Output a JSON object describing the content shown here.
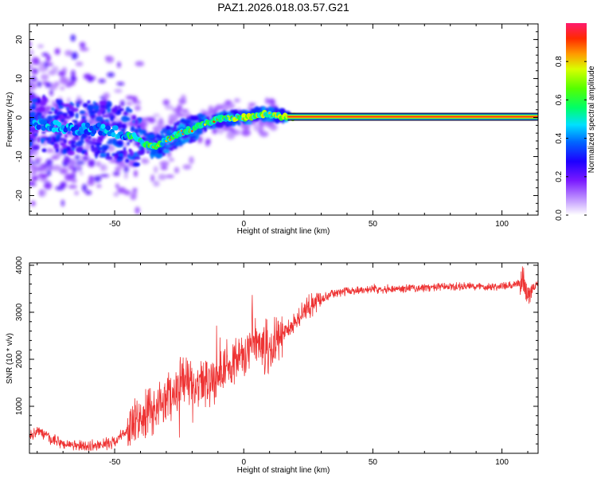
{
  "title": "PAZ1.2026.018.03.57.G21",
  "chart_data": [
    {
      "type": "heatmap",
      "xlabel": "Height of straight line (km)",
      "ylabel": "Frequency (Hz)",
      "xlim": [
        -83,
        114
      ],
      "ylim": [
        -25,
        24
      ],
      "xticks": [
        -50,
        0,
        50,
        100
      ],
      "yticks": [
        -20,
        -10,
        0,
        10,
        20
      ],
      "xtick_labels": [
        "-50",
        "0",
        "50",
        "100"
      ],
      "ytick_labels": [
        "-20",
        "-10",
        "0",
        "10",
        "20"
      ],
      "colorbar": {
        "label": "Normalized spectral amplitude",
        "range": [
          0,
          1
        ],
        "ticks": [
          0.0,
          0.2,
          0.4,
          0.6,
          0.8
        ],
        "tick_labels": [
          "0.0",
          "0.2",
          "0.4",
          "0.6",
          "0.8"
        ]
      },
      "ridge": {
        "x": [
          -83,
          -75,
          -65,
          -55,
          -48,
          -42,
          -38,
          -35,
          -30,
          -25,
          -20,
          -15,
          -10,
          -5,
          0,
          5,
          8,
          12,
          16,
          20,
          30,
          50,
          80,
          100,
          113
        ],
        "y": [
          -1,
          -2,
          -3,
          -3,
          -4,
          -5,
          -7,
          -7.5,
          -6,
          -4,
          -3,
          -1.5,
          -0.5,
          0,
          0,
          0.5,
          1,
          0.5,
          0.2,
          0.2,
          0.2,
          0.2,
          0.2,
          0.2,
          0.2
        ]
      }
    },
    {
      "type": "line",
      "xlabel": "Height of straight line (km)",
      "ylabel": "SNR (10 * v/v)",
      "xlim": [
        -83,
        114
      ],
      "ylim": [
        0,
        4050
      ],
      "xticks": [
        -50,
        0,
        50,
        100
      ],
      "yticks": [
        1000,
        2000,
        3000,
        4000
      ],
      "xtick_labels": [
        "-50",
        "0",
        "50",
        "100"
      ],
      "ytick_labels": [
        "1000",
        "2000",
        "3000",
        "4000"
      ],
      "color": "#ee3333",
      "series": [
        {
          "x": [
            -83,
            -80,
            -75,
            -70,
            -65,
            -60,
            -55,
            -50,
            -45,
            -40,
            -35,
            -30,
            -25,
            -22,
            -20,
            -15,
            -10,
            -5,
            0,
            3,
            5,
            8,
            10,
            12,
            15,
            20,
            25,
            30,
            35,
            40,
            50,
            60,
            70,
            80,
            90,
            100,
            105,
            108,
            110,
            112,
            114
          ],
          "y": [
            350,
            500,
            300,
            200,
            150,
            150,
            180,
            250,
            500,
            700,
            900,
            1200,
            1400,
            1600,
            1300,
            1500,
            1700,
            1900,
            2000,
            2300,
            2400,
            2300,
            2100,
            2300,
            2550,
            2800,
            3100,
            3300,
            3400,
            3450,
            3500,
            3500,
            3520,
            3540,
            3550,
            3550,
            3560,
            3700,
            3400,
            3550,
            3600
          ]
        }
      ]
    }
  ]
}
